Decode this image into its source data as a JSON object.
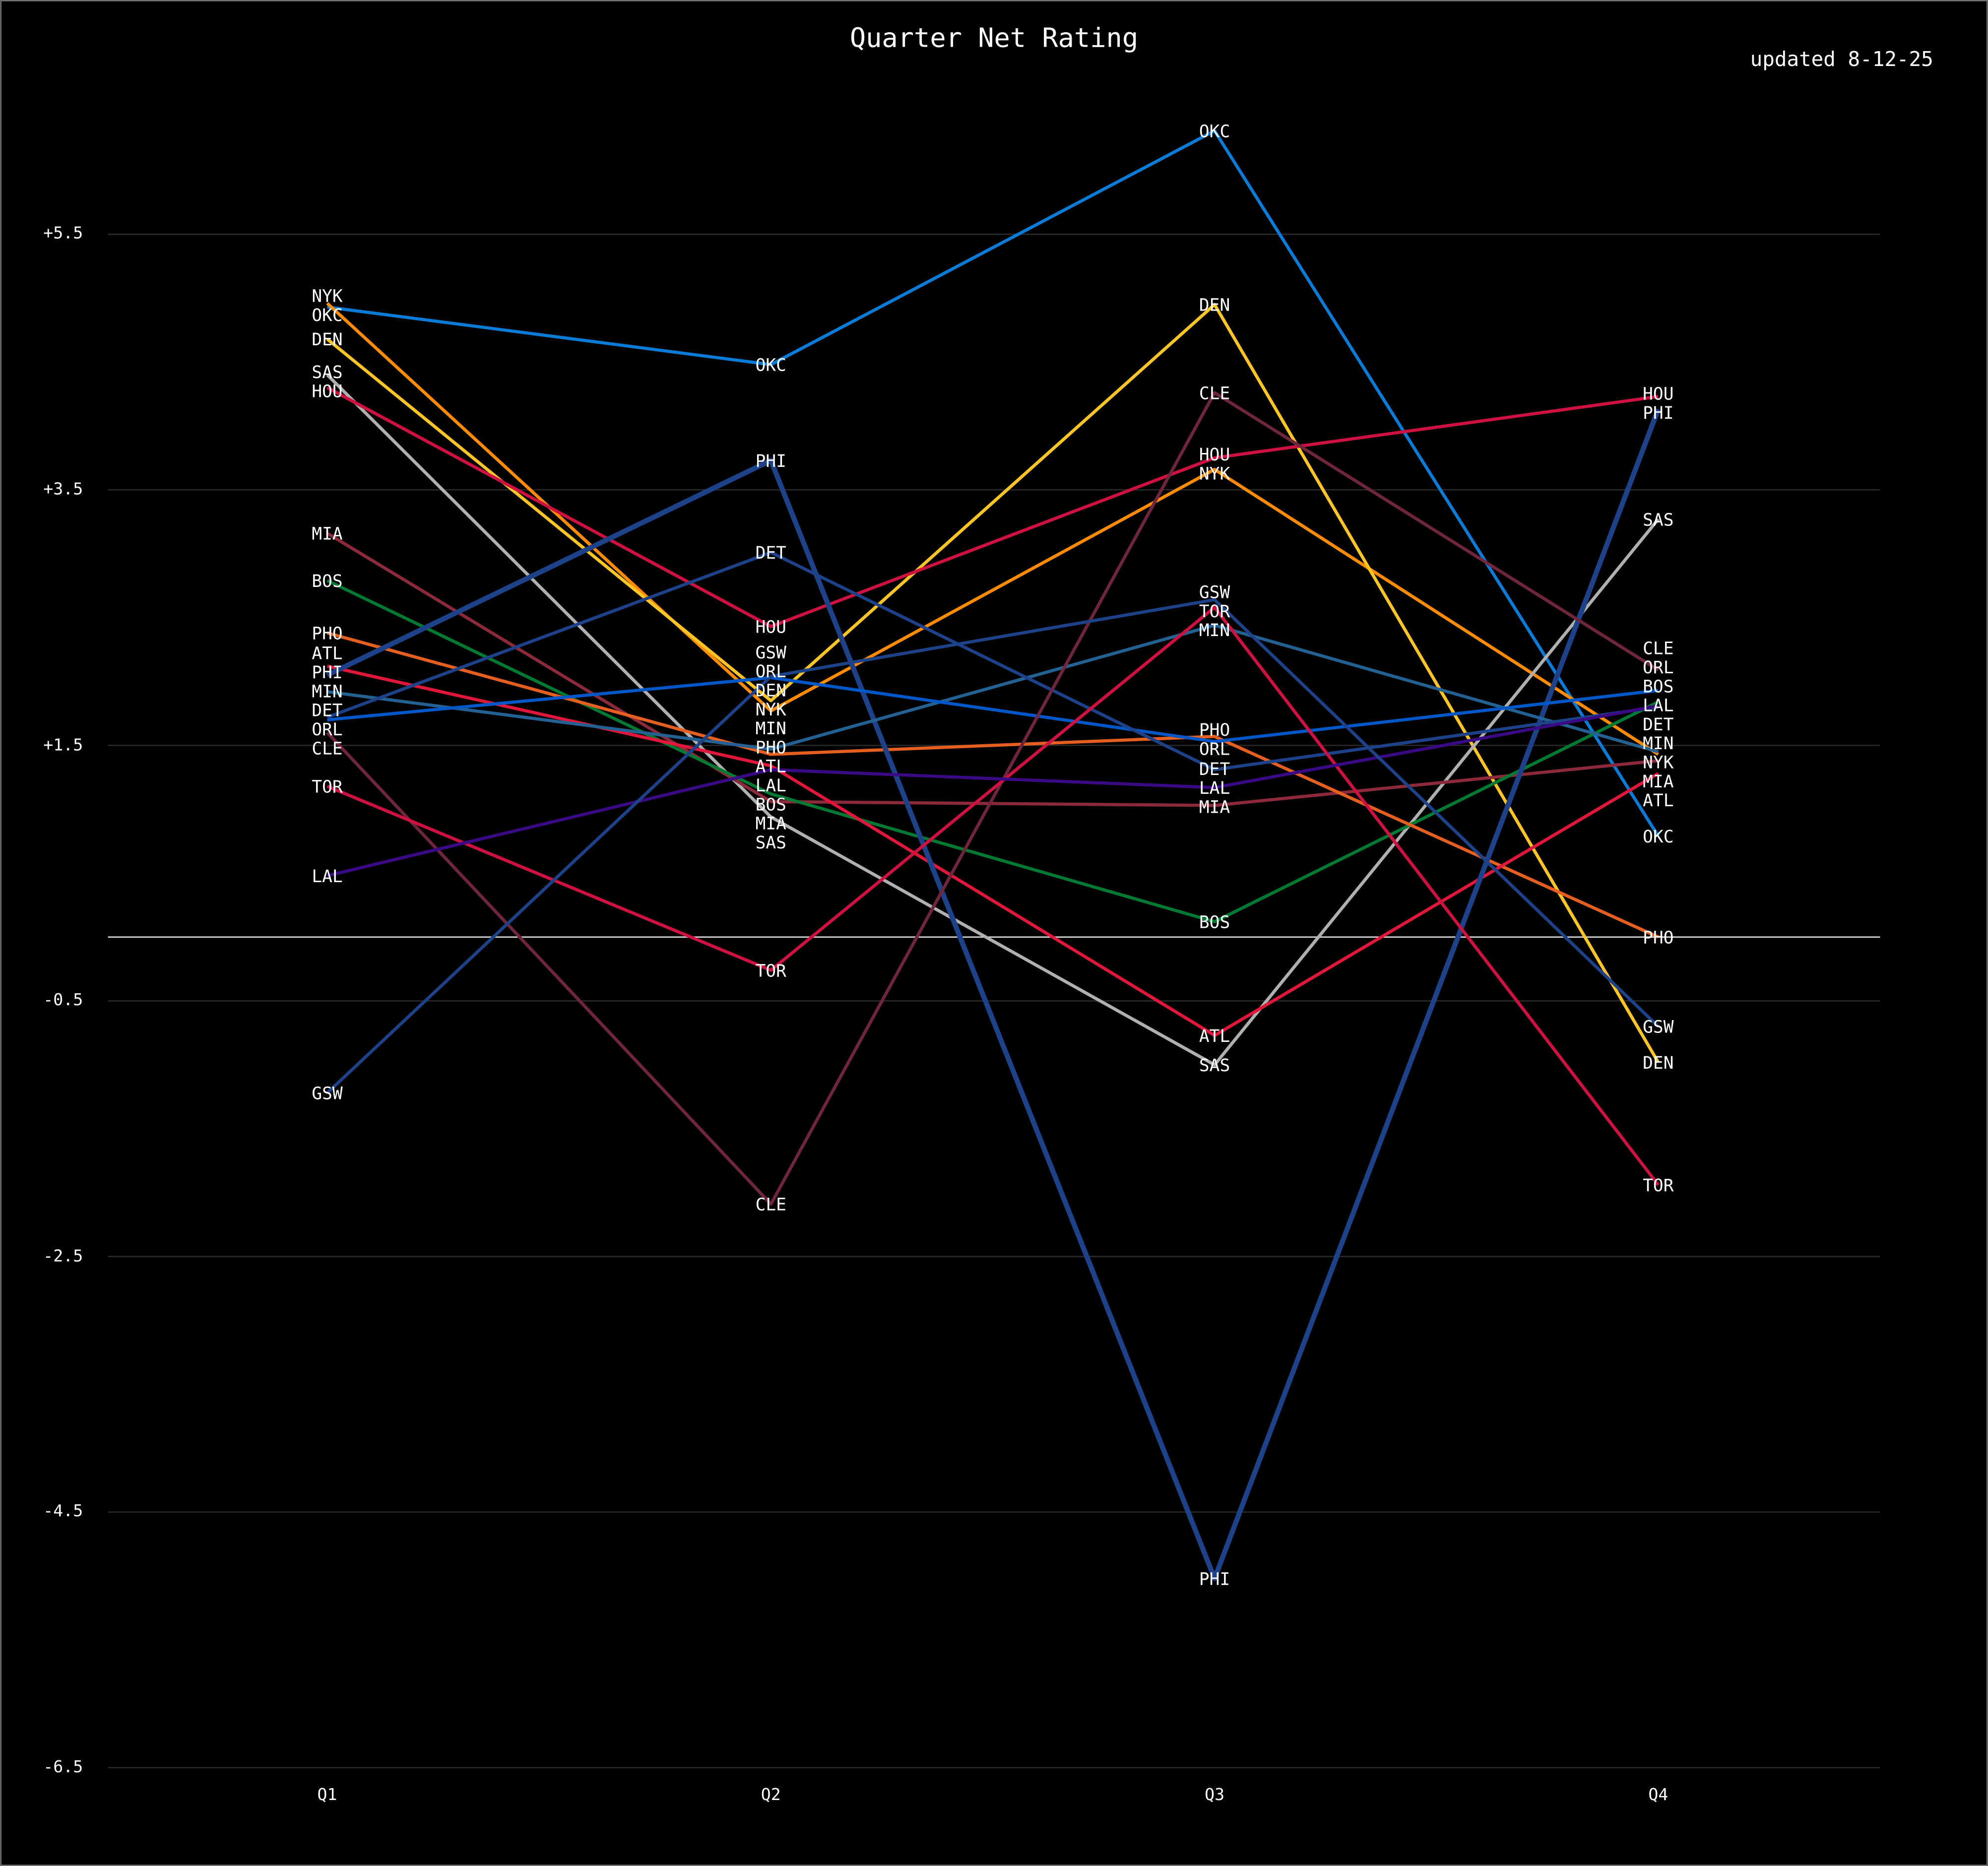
{
  "chart_data": {
    "type": "line",
    "title": "Quarter Net Rating",
    "subtitle": "updated 8-12-25",
    "xlabel": "",
    "ylabel": "",
    "categories": [
      "Q1",
      "Q2",
      "Q3",
      "Q4"
    ],
    "y_ticks": [
      "+5.5",
      "+3.5",
      "+1.5",
      "-0.5",
      "-2.5",
      "-4.5",
      "-6.5"
    ],
    "y_tick_values": [
      5.5,
      3.5,
      1.5,
      -0.5,
      -2.5,
      -4.5,
      -6.5
    ],
    "ylim": [
      -6.5,
      7.0
    ],
    "grid": true,
    "reference_line": 0,
    "series": [
      {
        "name": "OKC",
        "color": "#0a7bd6",
        "values": [
          4.93,
          4.48,
          6.31,
          0.79
        ]
      },
      {
        "name": "NYK",
        "color": "#ff8c00",
        "values": [
          4.96,
          1.77,
          3.66,
          1.43
        ]
      },
      {
        "name": "DEN",
        "color": "#fec524",
        "values": [
          4.68,
          1.85,
          4.95,
          -0.98
        ]
      },
      {
        "name": "SAS",
        "color": "#b0b0b0",
        "values": [
          4.4,
          0.94,
          -1.0,
          3.27
        ]
      },
      {
        "name": "HOU",
        "color": "#ce1141",
        "values": [
          4.3,
          2.43,
          3.75,
          4.23
        ]
      },
      {
        "name": "MIA",
        "color": "#8c2a3c",
        "values": [
          3.16,
          1.06,
          1.03,
          1.38
        ]
      },
      {
        "name": "BOS",
        "color": "#007a33",
        "values": [
          2.79,
          1.12,
          0.12,
          1.84
        ]
      },
      {
        "name": "PHO",
        "color": "#e56020",
        "values": [
          2.38,
          1.43,
          1.57,
          0.0
        ]
      },
      {
        "name": "ATL",
        "color": "#e0173a",
        "values": [
          2.12,
          1.34,
          -0.77,
          1.28
        ]
      },
      {
        "name": "PHI",
        "color": "#1d428a",
        "values": [
          2.05,
          3.73,
          -5.02,
          4.13
        ]
      },
      {
        "name": "MIN",
        "color": "#236192",
        "values": [
          1.92,
          1.47,
          2.44,
          1.45
        ]
      },
      {
        "name": "ORL",
        "color": "#0057c8",
        "values": [
          1.7,
          2.03,
          1.53,
          1.93
        ]
      },
      {
        "name": "DET",
        "color": "#1d428a",
        "values": [
          1.72,
          3.01,
          1.31,
          1.8
        ]
      },
      {
        "name": "CLE",
        "color": "#6f263d",
        "values": [
          1.6,
          -2.09,
          4.26,
          2.09
        ]
      },
      {
        "name": "TOR",
        "color": "#ce1141",
        "values": [
          1.18,
          -0.26,
          2.58,
          -1.94
        ]
      },
      {
        "name": "LAL",
        "color": "#3a0a84",
        "values": [
          0.48,
          1.31,
          1.17,
          1.81
        ]
      },
      {
        "name": "GSW",
        "color": "#1d428a",
        "values": [
          -1.22,
          2.04,
          2.64,
          -0.7
        ]
      }
    ]
  }
}
